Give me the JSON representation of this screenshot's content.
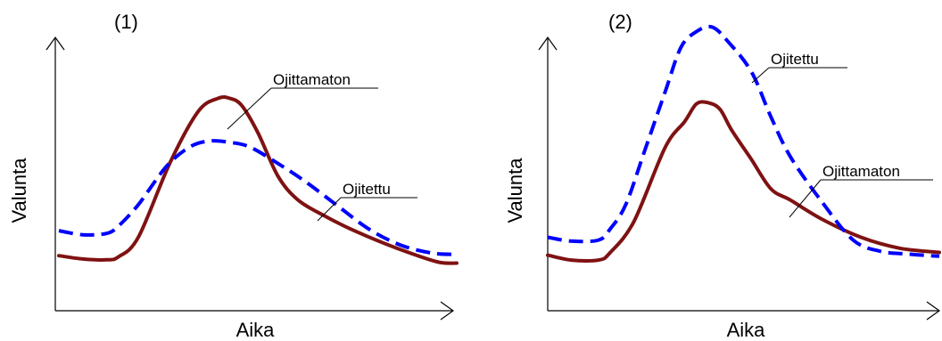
{
  "chart_data": [
    {
      "type": "line",
      "title": "(1)",
      "xlabel": "Aika",
      "ylabel": "Valunta",
      "xlim": [
        0,
        100
      ],
      "ylim": [
        0,
        100
      ],
      "grid": false,
      "legend": "none",
      "series": [
        {
          "name": "Ojittamaton",
          "color": "#7f1212",
          "style": "solid",
          "x": [
            0,
            6,
            12,
            15,
            20,
            28,
            35,
            40,
            43,
            46,
            50,
            55,
            60,
            67,
            75,
            85,
            95,
            100
          ],
          "y": [
            20,
            18.8,
            18.5,
            19.6,
            26.8,
            54,
            72.4,
            77.2,
            77.2,
            74.5,
            64.8,
            49.1,
            40.4,
            34.3,
            28.6,
            22.7,
            17.8,
            17.3
          ]
        },
        {
          "name": "Ojitettu",
          "color": "#0000ff",
          "style": "dashed",
          "x": [
            0,
            6,
            12,
            15,
            20,
            27,
            33,
            38,
            43,
            48,
            55,
            62,
            70,
            78,
            86,
            94,
            100
          ],
          "y": [
            29.1,
            27.6,
            28.1,
            30.8,
            38.6,
            52.4,
            59.6,
            61.7,
            61.2,
            59.5,
            53.6,
            46.9,
            38.2,
            29.6,
            23.8,
            20.9,
            20.5
          ]
        }
      ],
      "annotations": [
        {
          "text": "Ojittamaton",
          "target": "Ojittamaton"
        },
        {
          "text": "Ojitettu",
          "target": "Ojitettu"
        }
      ]
    },
    {
      "type": "line",
      "title": "(2)",
      "xlabel": "Aika",
      "ylabel": "Valunta",
      "xlim": [
        0,
        100
      ],
      "ylim": [
        0,
        100
      ],
      "grid": false,
      "legend": "none",
      "series": [
        {
          "name": "Ojittamaton",
          "color": "#7f1212",
          "style": "solid",
          "x": [
            0,
            6,
            13,
            16,
            22,
            30,
            35,
            38,
            41,
            44,
            47,
            52,
            57,
            62,
            70,
            80,
            90,
            100
          ],
          "y": [
            20.2,
            18.4,
            18.4,
            21.2,
            32.4,
            59.4,
            68.8,
            75.2,
            75.6,
            73.2,
            65.6,
            55,
            44.3,
            40.2,
            33.3,
            26.7,
            22.7,
            21.2
          ]
        },
        {
          "name": "Ojitettu",
          "color": "#0000ff",
          "style": "dashed",
          "x": [
            0,
            6,
            13,
            16,
            20,
            25,
            30,
            34,
            38,
            42,
            46,
            52,
            57,
            62,
            70,
            78,
            85,
            92,
            100
          ],
          "y": [
            26.7,
            25.3,
            25.7,
            29.8,
            38.8,
            59.2,
            79.6,
            95.7,
            101.5,
            103.1,
            97.9,
            86.9,
            70.5,
            55.9,
            39.6,
            25.7,
            21.6,
            20.6,
            19.8
          ]
        }
      ],
      "annotations": [
        {
          "text": "Ojitettu",
          "target": "Ojitettu"
        },
        {
          "text": "Ojittamaton",
          "target": "Ojittamaton"
        }
      ]
    }
  ]
}
